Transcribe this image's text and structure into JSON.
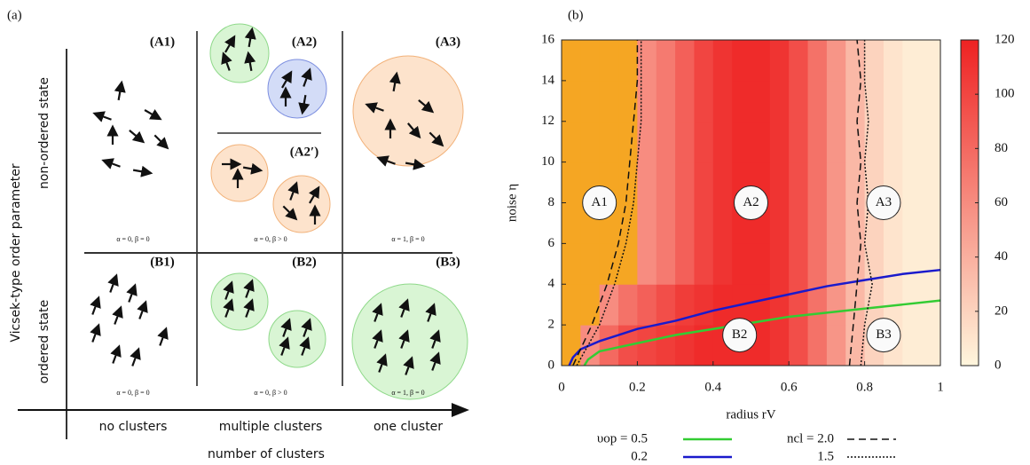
{
  "panel_a": {
    "label": "(a)",
    "y_axis_label": "Vicsek-type order parameter",
    "row_labels": [
      "non-ordered state",
      "ordered state"
    ],
    "x_axis_label": "number of clusters",
    "column_labels": [
      "no clusters",
      "multiple clusters",
      "one cluster"
    ],
    "cells": [
      {
        "id": "(A1)",
        "caption": "α = 0, β = 0"
      },
      {
        "id": "(A2)",
        "caption": "α = 0, β > 0"
      },
      {
        "id": "(A3)",
        "caption": "α = 1, β = 0"
      },
      {
        "id": "(B1)",
        "caption": "α = 0, β = 0"
      },
      {
        "id": "(B2)",
        "caption": "α = 0, β > 0"
      },
      {
        "id": "(B3)",
        "caption": "α = 1, β = 0"
      }
    ],
    "sub_cell": "(A2′)"
  },
  "chart_data": {
    "type": "heatmap",
    "panel_label": "(b)",
    "xlabel": "radius rV",
    "ylabel": "noise η",
    "xlim": [
      0,
      1
    ],
    "xticks": [
      0,
      0.2,
      0.4,
      0.6,
      0.8,
      1
    ],
    "ylim": [
      0,
      16
    ],
    "yticks": [
      0,
      2,
      4,
      6,
      8,
      10,
      12,
      14,
      16
    ],
    "x_bins": [
      0,
      0.05,
      0.1,
      0.15,
      0.2,
      0.25,
      0.3,
      0.35,
      0.4,
      0.45,
      0.5,
      0.55,
      0.6,
      0.65,
      0.7,
      0.75,
      0.8,
      0.85,
      0.9,
      0.95,
      1
    ],
    "y_bins": [
      0,
      2,
      4,
      6,
      8,
      10,
      12,
      14,
      16
    ],
    "z": [
      [
        null,
        60,
        80,
        95,
        100,
        105,
        110,
        115,
        115,
        115,
        115,
        110,
        95,
        75,
        55,
        35,
        20,
        10,
        5,
        5
      ],
      [
        null,
        null,
        60,
        75,
        85,
        95,
        105,
        110,
        115,
        115,
        115,
        110,
        95,
        75,
        55,
        35,
        20,
        10,
        5,
        5
      ],
      [
        null,
        null,
        null,
        null,
        60,
        70,
        85,
        100,
        110,
        115,
        115,
        110,
        95,
        75,
        55,
        35,
        20,
        10,
        5,
        5
      ],
      [
        null,
        null,
        null,
        null,
        60,
        70,
        85,
        100,
        110,
        115,
        115,
        110,
        95,
        75,
        55,
        35,
        20,
        10,
        5,
        5
      ],
      [
        null,
        null,
        null,
        null,
        60,
        70,
        85,
        100,
        110,
        115,
        115,
        110,
        95,
        75,
        55,
        35,
        20,
        10,
        5,
        5
      ],
      [
        null,
        null,
        null,
        null,
        60,
        70,
        85,
        100,
        110,
        115,
        115,
        110,
        95,
        75,
        55,
        35,
        20,
        10,
        5,
        5
      ],
      [
        null,
        null,
        null,
        null,
        60,
        70,
        85,
        100,
        110,
        115,
        115,
        110,
        95,
        75,
        55,
        35,
        20,
        10,
        5,
        5
      ],
      [
        null,
        null,
        null,
        null,
        60,
        70,
        85,
        100,
        110,
        115,
        115,
        110,
        95,
        75,
        55,
        35,
        20,
        10,
        5,
        5
      ]
    ],
    "colormap": [
      "#fff6dd",
      "#ee2222"
    ],
    "null_color": "#f5a623",
    "colorbar": {
      "lim": [
        0,
        120
      ],
      "ticks": [
        0,
        20,
        40,
        60,
        80,
        100,
        120
      ]
    },
    "region_labels": [
      "A1",
      "A2",
      "A3",
      "B2",
      "B3"
    ],
    "series": [
      {
        "name": "υop = 0.5",
        "color": "#33cc33",
        "style": "solid",
        "x": [
          0.06,
          0.07,
          0.1,
          0.2,
          0.3,
          0.4,
          0.5,
          0.6,
          0.7,
          0.8,
          0.9,
          1.0
        ],
        "values": [
          0,
          0.3,
          0.7,
          1.1,
          1.5,
          1.8,
          2.1,
          2.4,
          2.6,
          2.8,
          3.0,
          3.2
        ]
      },
      {
        "name": "0.2",
        "color": "#1a1acc",
        "style": "solid",
        "x": [
          0.02,
          0.03,
          0.05,
          0.1,
          0.2,
          0.3,
          0.4,
          0.5,
          0.6,
          0.7,
          0.8,
          0.9,
          1.0
        ],
        "values": [
          0,
          0.4,
          0.8,
          1.2,
          1.8,
          2.2,
          2.7,
          3.1,
          3.5,
          3.9,
          4.2,
          4.5,
          4.7
        ]
      },
      {
        "name": "ncl = 2.0",
        "color": "#111111",
        "style": "dashed",
        "x": [
          0.03,
          0.08,
          0.12,
          0.15,
          0.17,
          0.18,
          0.19,
          0.2,
          0.2,
          null,
          0.76,
          0.77,
          0.78,
          0.79,
          0.78,
          0.79,
          0.78,
          0.79,
          0.78
        ],
        "values": [
          0,
          2,
          4,
          6,
          8,
          10,
          12,
          14,
          16,
          null,
          0,
          2,
          4,
          6,
          8,
          10,
          12,
          14,
          16
        ]
      },
      {
        "name": "1.5",
        "color": "#111111",
        "style": "dotted",
        "x": [
          0.04,
          0.1,
          0.14,
          0.17,
          0.19,
          0.2,
          0.21,
          0.21,
          0.21,
          null,
          0.79,
          0.8,
          0.82,
          0.8,
          0.81,
          0.8,
          0.81,
          0.8,
          0.8
        ],
        "values": [
          0,
          2,
          4,
          6,
          8,
          10,
          12,
          14,
          16,
          null,
          0,
          2,
          4,
          6,
          8,
          10,
          12,
          14,
          16
        ]
      }
    ]
  }
}
